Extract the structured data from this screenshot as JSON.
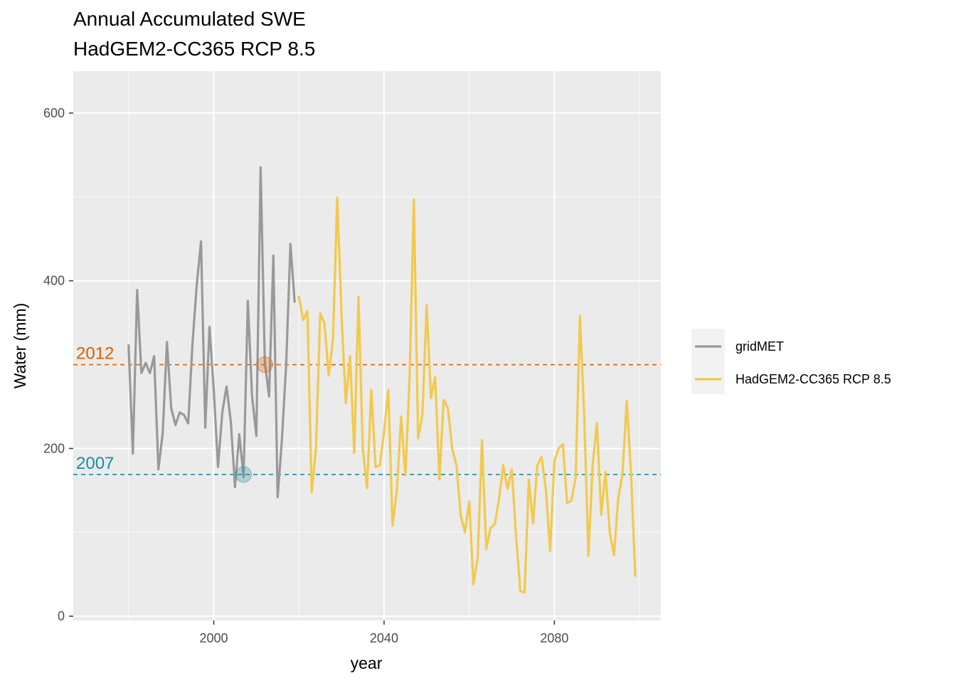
{
  "chart_data": {
    "type": "line",
    "title": [
      "Annual Accumulated SWE",
      "HadGEM2-CC365 RCP 8.5"
    ],
    "xlabel": "year",
    "ylabel": "Water (mm)",
    "xlim": [
      1967,
      2105
    ],
    "ylim": [
      -5,
      650
    ],
    "x_ticks": [
      2000,
      2040,
      2080
    ],
    "y_ticks": [
      0,
      200,
      400,
      600
    ],
    "grid": true,
    "legend_position": "right",
    "series": [
      {
        "name": "gridMET",
        "color": "#999999",
        "x": [
          1980,
          1981,
          1982,
          1983,
          1984,
          1985,
          1986,
          1987,
          1988,
          1989,
          1990,
          1991,
          1992,
          1993,
          1994,
          1995,
          1996,
          1997,
          1998,
          1999,
          2000,
          2001,
          2002,
          2003,
          2004,
          2005,
          2006,
          2007,
          2008,
          2009,
          2010,
          2011,
          2012,
          2013,
          2014,
          2015,
          2016,
          2017,
          2018,
          2019
        ],
        "y": [
          323,
          194,
          389,
          290,
          302,
          290,
          310,
          175,
          218,
          327,
          248,
          228,
          243,
          240,
          230,
          325,
          395,
          447,
          225,
          345,
          270,
          178,
          243,
          274,
          232,
          154,
          217,
          166,
          376,
          262,
          215,
          535,
          303,
          262,
          430,
          142,
          210,
          300,
          444,
          375
        ]
      },
      {
        "name": "HadGEM2-CC365 RCP 8.5",
        "color": "#f2c94c",
        "x": [
          2020,
          2021,
          2022,
          2023,
          2024,
          2025,
          2026,
          2027,
          2028,
          2029,
          2030,
          2031,
          2032,
          2033,
          2034,
          2035,
          2036,
          2037,
          2038,
          2039,
          2040,
          2041,
          2042,
          2043,
          2044,
          2045,
          2046,
          2047,
          2048,
          2049,
          2050,
          2051,
          2052,
          2053,
          2054,
          2055,
          2056,
          2057,
          2058,
          2059,
          2060,
          2061,
          2062,
          2063,
          2064,
          2065,
          2066,
          2067,
          2068,
          2069,
          2070,
          2071,
          2072,
          2073,
          2074,
          2075,
          2076,
          2077,
          2078,
          2079,
          2080,
          2081,
          2082,
          2083,
          2084,
          2085,
          2086,
          2087,
          2088,
          2089,
          2090,
          2091,
          2092,
          2093,
          2094,
          2095,
          2096,
          2097,
          2098,
          2099
        ],
        "y": [
          381,
          353,
          364,
          148,
          200,
          361,
          350,
          287,
          330,
          499,
          360,
          254,
          310,
          195,
          381,
          200,
          153,
          270,
          178,
          180,
          220,
          270,
          108,
          150,
          238,
          168,
          285,
          497,
          212,
          240,
          371,
          260,
          285,
          163,
          258,
          248,
          200,
          180,
          120,
          100,
          137,
          38,
          70,
          210,
          80,
          105,
          110,
          140,
          180,
          152,
          175,
          96,
          30,
          28,
          163,
          111,
          180,
          190,
          151,
          78,
          185,
          200,
          205,
          135,
          138,
          165,
          358,
          240,
          72,
          181,
          230,
          121,
          172,
          100,
          73,
          140,
          170,
          257,
          170,
          48
        ]
      }
    ],
    "reference_lines": [
      {
        "label": "2012",
        "y": 300,
        "color": "#d95f02",
        "marker_x": 2012
      },
      {
        "label": "2007",
        "y": 169,
        "color": "#1a8ba0",
        "marker_x": 2007
      }
    ]
  }
}
